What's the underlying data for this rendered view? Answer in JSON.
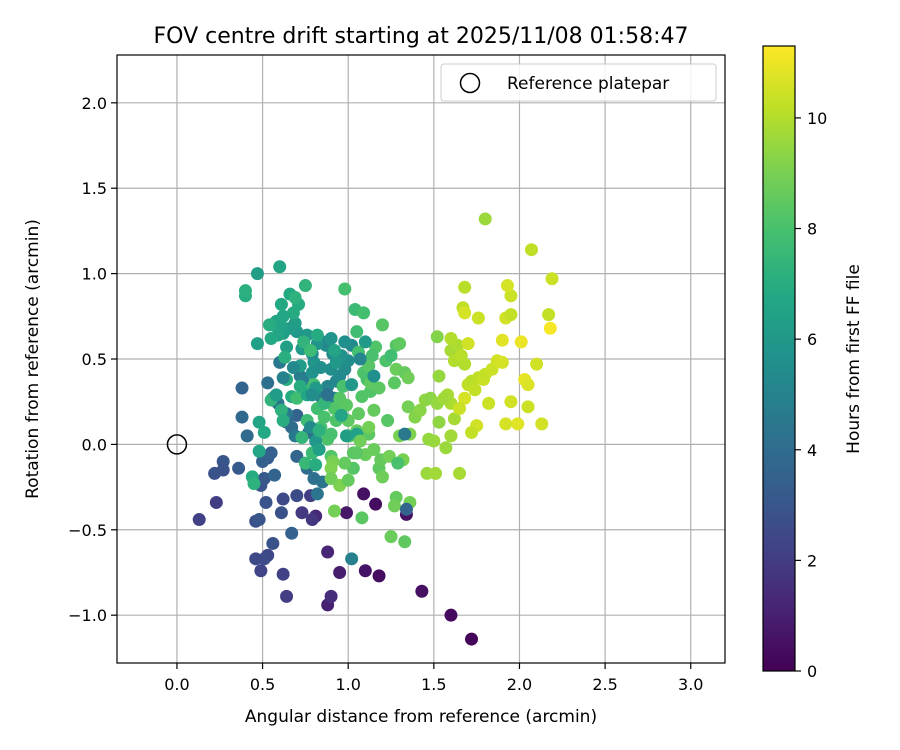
{
  "chart_data": {
    "type": "scatter",
    "title": "FOV centre drift starting at 2025/11/08 01:58:47",
    "xlabel": "Angular distance from reference (arcmin)",
    "ylabel": "Rotation from reference (arcmin)",
    "xlim": [
      -0.35,
      3.2
    ],
    "ylim": [
      -1.28,
      2.28
    ],
    "xticks": [
      "0.0",
      "0.5",
      "1.0",
      "1.5",
      "2.0",
      "2.5",
      "3.0"
    ],
    "xtick_values": [
      0,
      0.5,
      1.0,
      1.5,
      2.0,
      2.5,
      3.0
    ],
    "yticks": [
      "−1.0",
      "−0.5",
      "0.0",
      "0.5",
      "1.0",
      "1.5",
      "2.0"
    ],
    "ytick_values": [
      -1.0,
      -0.5,
      0,
      0.5,
      1.0,
      1.5,
      2.0
    ],
    "grid": true,
    "legend": {
      "label": "Reference platepar",
      "placement": "top-right"
    },
    "reference_point": {
      "x": 0.0,
      "y": 0.0
    },
    "colorbar": {
      "label": "Hours from first FF file",
      "min": 0,
      "max": 11.3,
      "ticks": [
        "0",
        "2",
        "4",
        "6",
        "8",
        "10"
      ],
      "tick_values": [
        0,
        2,
        4,
        6,
        8,
        10
      ],
      "colormap": "viridis"
    },
    "points": [
      [
        1.72,
        -1.14,
        0.1
      ],
      [
        1.6,
        -1.0,
        0.3
      ],
      [
        1.43,
        -0.86,
        0.5
      ],
      [
        1.18,
        -0.77,
        0.4
      ],
      [
        1.1,
        -0.74,
        0.6
      ],
      [
        1.34,
        -0.41,
        0.5
      ],
      [
        1.16,
        -0.35,
        0.4
      ],
      [
        1.09,
        -0.29,
        0.5
      ],
      [
        0.99,
        -0.4,
        0.7
      ],
      [
        0.95,
        -0.75,
        0.9
      ],
      [
        0.88,
        -0.63,
        1.2
      ],
      [
        0.88,
        -0.94,
        1.0
      ],
      [
        0.9,
        -0.89,
        1.5
      ],
      [
        0.81,
        -0.42,
        1.3
      ],
      [
        0.79,
        -0.44,
        1.8
      ],
      [
        0.73,
        -0.4,
        1.9
      ],
      [
        0.78,
        -0.3,
        2.1
      ],
      [
        0.64,
        -0.89,
        2.0
      ],
      [
        0.62,
        -0.76,
        2.2
      ],
      [
        0.53,
        -0.65,
        2.4
      ],
      [
        0.51,
        -0.67,
        2.6
      ],
      [
        0.49,
        -0.74,
        2.3
      ],
      [
        0.46,
        -0.67,
        2.5
      ],
      [
        0.56,
        -0.58,
        2.8
      ],
      [
        0.13,
        -0.44,
        2.2
      ],
      [
        0.23,
        -0.34,
        2.0
      ],
      [
        0.46,
        -0.45,
        2.7
      ],
      [
        0.52,
        -0.34,
        2.9
      ],
      [
        0.48,
        -0.44,
        3.0
      ],
      [
        0.61,
        -0.4,
        2.8
      ],
      [
        0.7,
        -0.3,
        2.6
      ],
      [
        0.62,
        -0.32,
        2.5
      ],
      [
        0.22,
        -0.17,
        2.9
      ],
      [
        0.27,
        -0.1,
        3.0
      ],
      [
        0.27,
        -0.15,
        2.8
      ],
      [
        0.36,
        -0.14,
        3.2
      ],
      [
        0.49,
        -0.24,
        2.9
      ],
      [
        0.51,
        -0.2,
        3.1
      ],
      [
        0.53,
        -0.08,
        3.3
      ],
      [
        0.5,
        -0.1,
        3.4
      ],
      [
        0.55,
        -0.05,
        3.5
      ],
      [
        0.57,
        -0.18,
        3.6
      ],
      [
        0.67,
        -0.52,
        3.5
      ],
      [
        0.7,
        -0.07,
        3.7
      ],
      [
        0.64,
        0.13,
        3.8
      ],
      [
        0.7,
        0.17,
        3.6
      ],
      [
        0.67,
        0.1,
        3.9
      ],
      [
        0.77,
        0.07,
        4.0
      ],
      [
        0.76,
        -0.14,
        4.1
      ],
      [
        0.8,
        -0.2,
        4.2
      ],
      [
        0.85,
        -0.22,
        4.3
      ],
      [
        0.82,
        -0.29,
        4.4
      ],
      [
        0.56,
        0.27,
        4.3
      ],
      [
        0.53,
        0.36,
        4.1
      ],
      [
        0.59,
        0.24,
        4.4
      ],
      [
        0.6,
        0.48,
        4.5
      ],
      [
        0.69,
        0.05,
        4.5
      ],
      [
        0.38,
        0.33,
        3.6
      ],
      [
        0.38,
        0.16,
        3.8
      ],
      [
        0.41,
        0.05,
        3.9
      ],
      [
        0.64,
        0.18,
        4.6
      ],
      [
        0.72,
        0.4,
        4.7
      ],
      [
        0.74,
        0.37,
        4.8
      ],
      [
        0.84,
        0.28,
        4.9
      ],
      [
        0.87,
        0.28,
        5.0
      ],
      [
        0.88,
        0.34,
        5.1
      ],
      [
        0.92,
        0.27,
        5.0
      ],
      [
        0.93,
        0.37,
        5.2
      ],
      [
        0.95,
        0.4,
        5.3
      ],
      [
        0.98,
        0.44,
        5.4
      ],
      [
        1.0,
        0.49,
        5.5
      ],
      [
        1.02,
        0.58,
        5.3
      ],
      [
        0.98,
        0.6,
        5.6
      ],
      [
        0.96,
        0.52,
        5.7
      ],
      [
        0.91,
        0.53,
        5.4
      ],
      [
        0.87,
        0.58,
        5.5
      ],
      [
        0.85,
        0.6,
        5.2
      ],
      [
        0.82,
        0.59,
        5.8
      ],
      [
        0.8,
        0.48,
        5.9
      ],
      [
        0.79,
        0.42,
        5.7
      ],
      [
        0.79,
        0.53,
        5.6
      ],
      [
        0.76,
        0.64,
        6.0
      ],
      [
        0.73,
        0.56,
        6.1
      ],
      [
        0.72,
        0.46,
        6.2
      ],
      [
        0.7,
        0.66,
        6.0
      ],
      [
        0.69,
        0.71,
        6.3
      ],
      [
        0.66,
        0.68,
        6.2
      ],
      [
        0.64,
        0.57,
        6.4
      ],
      [
        0.62,
        0.65,
        6.3
      ],
      [
        0.61,
        0.69,
        6.5
      ],
      [
        0.59,
        0.64,
        6.6
      ],
      [
        0.58,
        0.72,
        6.5
      ],
      [
        0.56,
        0.7,
        6.7
      ],
      [
        0.47,
        0.59,
        6.4
      ],
      [
        0.47,
        1.0,
        6.3
      ],
      [
        0.6,
        1.04,
        6.6
      ],
      [
        0.66,
        0.88,
        6.8
      ],
      [
        0.71,
        0.82,
        6.9
      ],
      [
        0.69,
        0.86,
        7.2
      ],
      [
        0.75,
        0.93,
        7.3
      ],
      [
        0.68,
        0.77,
        6.9
      ],
      [
        0.62,
        0.75,
        6.7
      ],
      [
        0.61,
        0.82,
        6.8
      ],
      [
        0.4,
        0.87,
        7.0
      ],
      [
        0.4,
        0.9,
        7.1
      ],
      [
        0.54,
        0.7,
        7.0
      ],
      [
        0.55,
        0.62,
        6.8
      ],
      [
        0.63,
        0.51,
        7.1
      ],
      [
        0.64,
        0.38,
        7.0
      ],
      [
        0.67,
        0.28,
        6.9
      ],
      [
        0.61,
        0.2,
        7.2
      ],
      [
        0.62,
        0.14,
        7.0
      ],
      [
        0.48,
        0.13,
        6.6
      ],
      [
        0.51,
        0.07,
        6.8
      ],
      [
        0.55,
        0.26,
        7.3
      ],
      [
        0.44,
        -0.19,
        6.9
      ],
      [
        0.45,
        -0.23,
        7.2
      ],
      [
        0.48,
        -0.04,
        6.7
      ],
      [
        0.73,
        0.04,
        7.4
      ],
      [
        0.75,
        -0.11,
        7.5
      ],
      [
        0.79,
        -0.05,
        7.6
      ],
      [
        0.76,
        0.14,
        7.7
      ],
      [
        0.7,
        0.27,
        7.8
      ],
      [
        0.76,
        0.31,
        7.6
      ],
      [
        0.8,
        0.35,
        7.9
      ],
      [
        0.82,
        0.21,
        7.8
      ],
      [
        0.84,
        0.1,
        7.9
      ],
      [
        0.86,
        0.16,
        8.0
      ],
      [
        0.88,
        0.03,
        8.1
      ],
      [
        0.9,
        -0.07,
        8.2
      ],
      [
        0.9,
        0.06,
        8.0
      ],
      [
        0.93,
        0.14,
        8.1
      ],
      [
        0.92,
        0.21,
        8.2
      ],
      [
        0.95,
        0.27,
        8.3
      ],
      [
        0.97,
        0.34,
        8.0
      ],
      [
        0.99,
        0.23,
        8.4
      ],
      [
        1.0,
        0.14,
        8.5
      ],
      [
        1.01,
        0.05,
        8.3
      ],
      [
        1.03,
        -0.05,
        8.4
      ],
      [
        1.05,
        0.08,
        8.6
      ],
      [
        1.06,
        0.18,
        8.5
      ],
      [
        1.08,
        0.28,
        8.2
      ],
      [
        1.09,
        0.42,
        8.1
      ],
      [
        1.11,
        0.38,
        8.0
      ],
      [
        1.06,
        0.54,
        7.9
      ],
      [
        1.05,
        0.66,
        7.8
      ],
      [
        1.04,
        0.79,
        7.6
      ],
      [
        1.09,
        0.77,
        7.9
      ],
      [
        0.98,
        0.91,
        7.9
      ],
      [
        1.2,
        0.7,
        8.3
      ],
      [
        1.16,
        0.57,
        8.2
      ],
      [
        1.14,
        0.52,
        8.0
      ],
      [
        1.12,
        0.46,
        8.3
      ],
      [
        1.13,
        0.31,
        8.2
      ],
      [
        1.13,
        0.36,
        8.5
      ],
      [
        1.15,
        0.2,
        8.6
      ],
      [
        1.12,
        0.06,
        8.4
      ],
      [
        1.15,
        -0.03,
        8.7
      ],
      [
        1.18,
        -0.14,
        8.5
      ],
      [
        1.2,
        -0.19,
        8.8
      ],
      [
        1.19,
        -0.09,
        8.6
      ],
      [
        1.24,
        -0.07,
        8.9
      ],
      [
        1.27,
        0.36,
        8.4
      ],
      [
        1.28,
        0.58,
        8.3
      ],
      [
        1.3,
        0.59,
        8.5
      ],
      [
        1.28,
        0.44,
        8.7
      ],
      [
        1.33,
        0.42,
        8.6
      ],
      [
        1.35,
        0.39,
        8.8
      ],
      [
        1.35,
        0.22,
        8.9
      ],
      [
        1.3,
        0.05,
        9.0
      ],
      [
        1.28,
        -0.31,
        8.6
      ],
      [
        1.27,
        -0.36,
        8.8
      ],
      [
        1.25,
        -0.54,
        8.7
      ],
      [
        1.33,
        -0.57,
        8.5
      ],
      [
        1.36,
        -0.34,
        8.9
      ],
      [
        1.32,
        -0.09,
        9.0
      ],
      [
        1.08,
        -0.43,
        8.4
      ],
      [
        1.03,
        -0.14,
        8.3
      ],
      [
        0.98,
        -0.11,
        8.6
      ],
      [
        0.95,
        -0.24,
        9.1
      ],
      [
        0.92,
        -0.39,
        8.9
      ],
      [
        0.91,
        -0.1,
        9.0
      ],
      [
        0.9,
        -0.14,
        9.1
      ],
      [
        1.0,
        -0.21,
        8.6
      ],
      [
        1.1,
        -0.06,
        8.7
      ],
      [
        1.36,
        0.06,
        9.1
      ],
      [
        1.39,
        0.16,
        9.2
      ],
      [
        1.42,
        0.2,
        9.3
      ],
      [
        1.45,
        0.26,
        9.4
      ],
      [
        1.48,
        0.27,
        9.3
      ],
      [
        1.52,
        0.24,
        9.5
      ],
      [
        1.53,
        0.13,
        9.4
      ],
      [
        1.5,
        0.02,
        9.6
      ],
      [
        1.47,
        0.03,
        9.5
      ],
      [
        1.46,
        -0.17,
        9.6
      ],
      [
        1.51,
        -0.17,
        9.7
      ],
      [
        1.57,
        -0.02,
        9.6
      ],
      [
        1.6,
        0.05,
        9.7
      ],
      [
        1.62,
        0.15,
        9.8
      ],
      [
        1.6,
        0.24,
        9.9
      ],
      [
        1.58,
        0.29,
        9.8
      ],
      [
        1.56,
        0.27,
        9.7
      ],
      [
        1.53,
        0.4,
        9.5
      ],
      [
        1.52,
        0.63,
        9.2
      ],
      [
        1.6,
        0.55,
        9.8
      ],
      [
        1.62,
        0.49,
        10.0
      ],
      [
        1.64,
        0.58,
        9.9
      ],
      [
        1.66,
        0.52,
        10.1
      ],
      [
        1.68,
        0.47,
        10.0
      ],
      [
        1.7,
        0.35,
        10.2
      ],
      [
        1.72,
        0.37,
        10.1
      ],
      [
        1.74,
        0.32,
        10.3
      ],
      [
        1.76,
        0.39,
        10.2
      ],
      [
        1.79,
        0.38,
        10.4
      ],
      [
        1.8,
        0.41,
        10.3
      ],
      [
        1.84,
        0.44,
        10.4
      ],
      [
        1.87,
        0.49,
        10.5
      ],
      [
        1.9,
        0.48,
        10.6
      ],
      [
        1.82,
        0.24,
        10.4
      ],
      [
        1.75,
        0.11,
        10.5
      ],
      [
        1.72,
        0.07,
        10.3
      ],
      [
        1.68,
        0.27,
        10.6
      ],
      [
        1.65,
        0.21,
        10.4
      ],
      [
        1.6,
        0.62,
        10.0
      ],
      [
        1.7,
        0.59,
        10.5
      ],
      [
        1.67,
        0.8,
        10.2
      ],
      [
        1.68,
        0.77,
        10.6
      ],
      [
        1.68,
        0.92,
        10.1
      ],
      [
        1.76,
        0.74,
        10.4
      ],
      [
        1.8,
        1.32,
        9.6
      ],
      [
        1.9,
        0.61,
        10.8
      ],
      [
        1.92,
        0.74,
        10.5
      ],
      [
        1.95,
        0.76,
        10.3
      ],
      [
        1.95,
        0.87,
        10.4
      ],
      [
        1.93,
        0.93,
        10.6
      ],
      [
        2.01,
        0.6,
        11.0
      ],
      [
        2.07,
        1.14,
        10.2
      ],
      [
        2.03,
        0.38,
        10.9
      ],
      [
        2.05,
        0.35,
        10.7
      ],
      [
        2.1,
        0.47,
        10.5
      ],
      [
        2.05,
        0.22,
        10.4
      ],
      [
        1.95,
        0.25,
        10.5
      ],
      [
        1.92,
        0.12,
        10.6
      ],
      [
        1.99,
        0.12,
        10.8
      ],
      [
        2.13,
        0.12,
        10.5
      ],
      [
        2.17,
        0.76,
        10.3
      ],
      [
        2.18,
        0.68,
        11.2
      ],
      [
        2.19,
        0.97,
        10.4
      ],
      [
        1.65,
        -0.17,
        9.8
      ],
      [
        1.05,
        -0.05,
        8.4
      ],
      [
        1.07,
        0.5,
        5.2
      ],
      [
        1.1,
        0.6,
        6.1
      ],
      [
        1.15,
        0.4,
        5.6
      ],
      [
        1.02,
        0.35,
        6.0
      ],
      [
        1.34,
        -0.38,
        3.6
      ],
      [
        1.33,
        0.06,
        4.5
      ],
      [
        1.02,
        -0.67,
        4.9
      ],
      [
        0.81,
        0.02,
        5.9
      ],
      [
        0.83,
        -0.03,
        6.4
      ],
      [
        0.99,
        0.05,
        6.3
      ],
      [
        1.05,
        0.06,
        6.5
      ],
      [
        0.96,
        0.17,
        6.6
      ],
      [
        0.86,
        0.24,
        7.4
      ],
      [
        0.76,
        0.29,
        6.7
      ],
      [
        0.81,
        0.33,
        6.1
      ],
      [
        0.68,
        0.45,
        5.3
      ],
      [
        0.62,
        0.39,
        5.0
      ],
      [
        0.84,
        0.45,
        5.6
      ],
      [
        0.9,
        0.44,
        5.5
      ],
      [
        0.9,
        0.62,
        5.8
      ],
      [
        0.93,
        0.48,
        6.0
      ],
      [
        0.92,
        0.55,
        6.6
      ],
      [
        0.82,
        0.64,
        6.9
      ],
      [
        0.74,
        0.6,
        7.3
      ],
      [
        0.78,
        0.55,
        7.7
      ],
      [
        0.72,
        0.34,
        7.0
      ],
      [
        0.58,
        0.29,
        6.2
      ],
      [
        0.78,
        0.1,
        5.3
      ],
      [
        0.79,
        0.29,
        5.5
      ],
      [
        0.81,
        -0.12,
        7.0
      ],
      [
        0.9,
        -0.2,
        8.8
      ],
      [
        0.83,
        0.08,
        7.2
      ],
      [
        1.18,
        0.33,
        8.4
      ],
      [
        1.22,
        0.49,
        8.1
      ],
      [
        1.25,
        0.52,
        7.8
      ],
      [
        1.23,
        0.14,
        8.3
      ],
      [
        1.29,
        -0.11,
        8.0
      ],
      [
        1.07,
        0.02,
        8.8
      ],
      [
        1.12,
        0.1,
        8.9
      ],
      [
        0.88,
        0.29,
        4.2
      ]
    ]
  }
}
